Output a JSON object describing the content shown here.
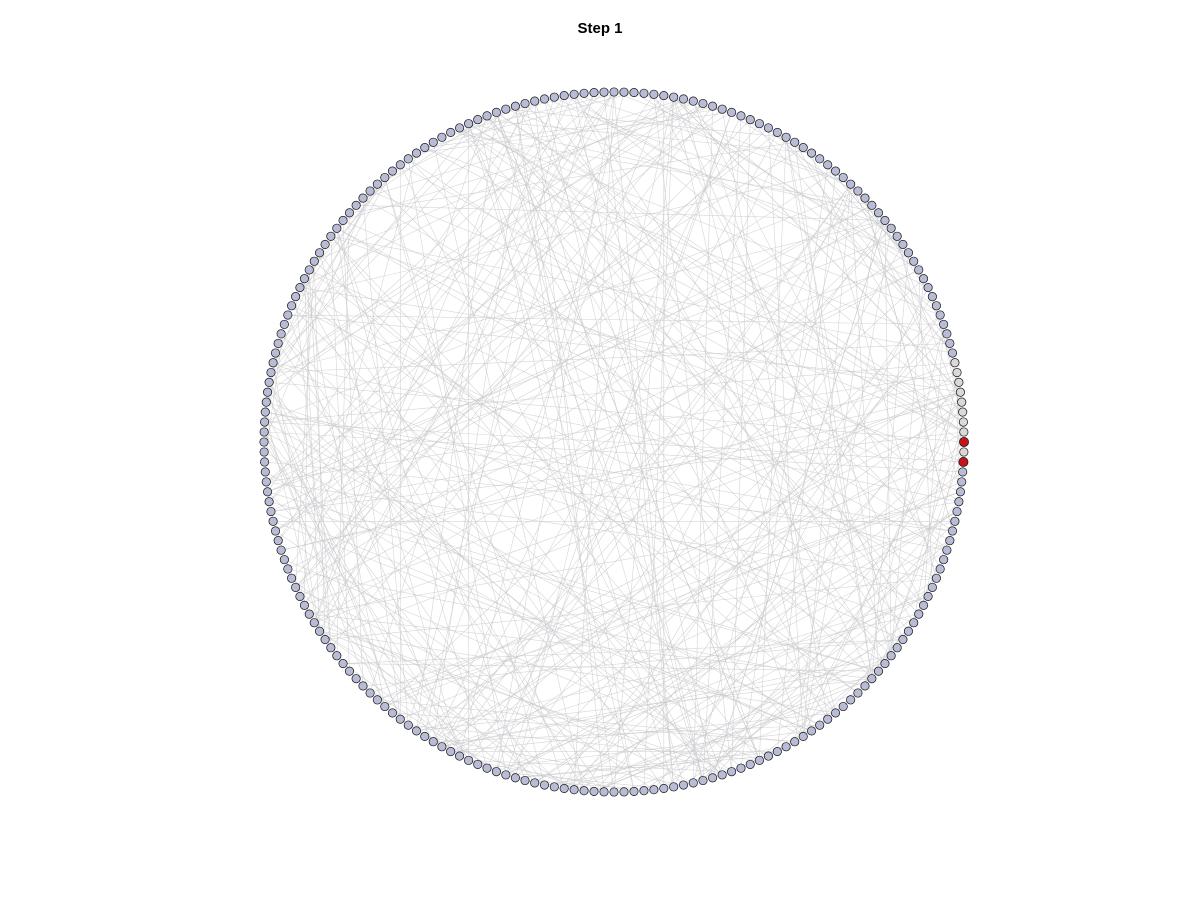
{
  "title": "Step 1",
  "graph": {
    "layout": "circular",
    "node_count": 220,
    "default_node_color": "#b9bcd6",
    "neutral_node_color": "#d9d9d9",
    "active_node_color": "#c4131a",
    "edge_color": "#c8c8cc",
    "active_nodes": [
      0,
      218
    ],
    "neutral_nodes": [
      1,
      2,
      3,
      4,
      5,
      6,
      7,
      8,
      219
    ]
  }
}
